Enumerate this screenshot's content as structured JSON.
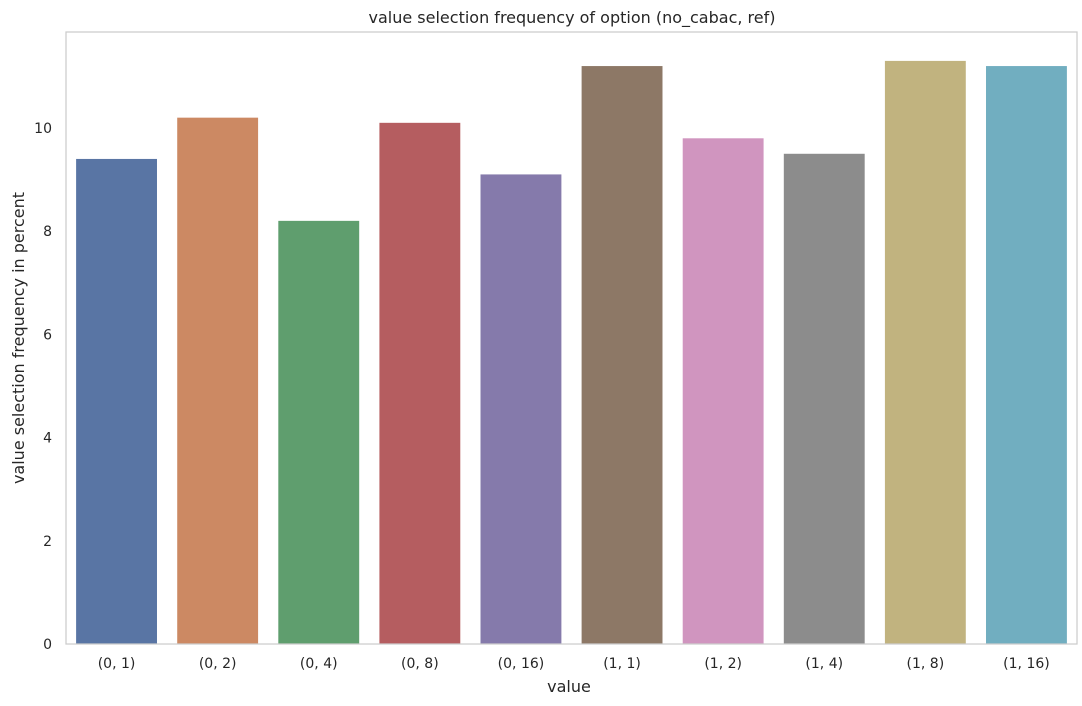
{
  "chart_data": {
    "type": "bar",
    "title": "value selection frequency of option (no_cabac, ref)",
    "xlabel": "value",
    "ylabel": "value selection frequency in percent",
    "categories": [
      "(0, 1)",
      "(0, 2)",
      "(0, 4)",
      "(0, 8)",
      "(0, 16)",
      "(1, 1)",
      "(1, 2)",
      "(1, 4)",
      "(1, 8)",
      "(1, 16)"
    ],
    "values": [
      9.4,
      10.2,
      8.2,
      10.1,
      9.1,
      11.2,
      9.8,
      9.5,
      11.3,
      11.2
    ],
    "colors": [
      "#5975a4",
      "#cc8963",
      "#5f9e6e",
      "#b55d60",
      "#857aab",
      "#8d7866",
      "#d095bf",
      "#8c8c8c",
      "#c1b37f",
      "#71aec0"
    ],
    "ylim": [
      0,
      11.86
    ],
    "yticks": [
      0,
      2,
      4,
      6,
      8,
      10
    ],
    "grid": false,
    "legend": "none"
  }
}
